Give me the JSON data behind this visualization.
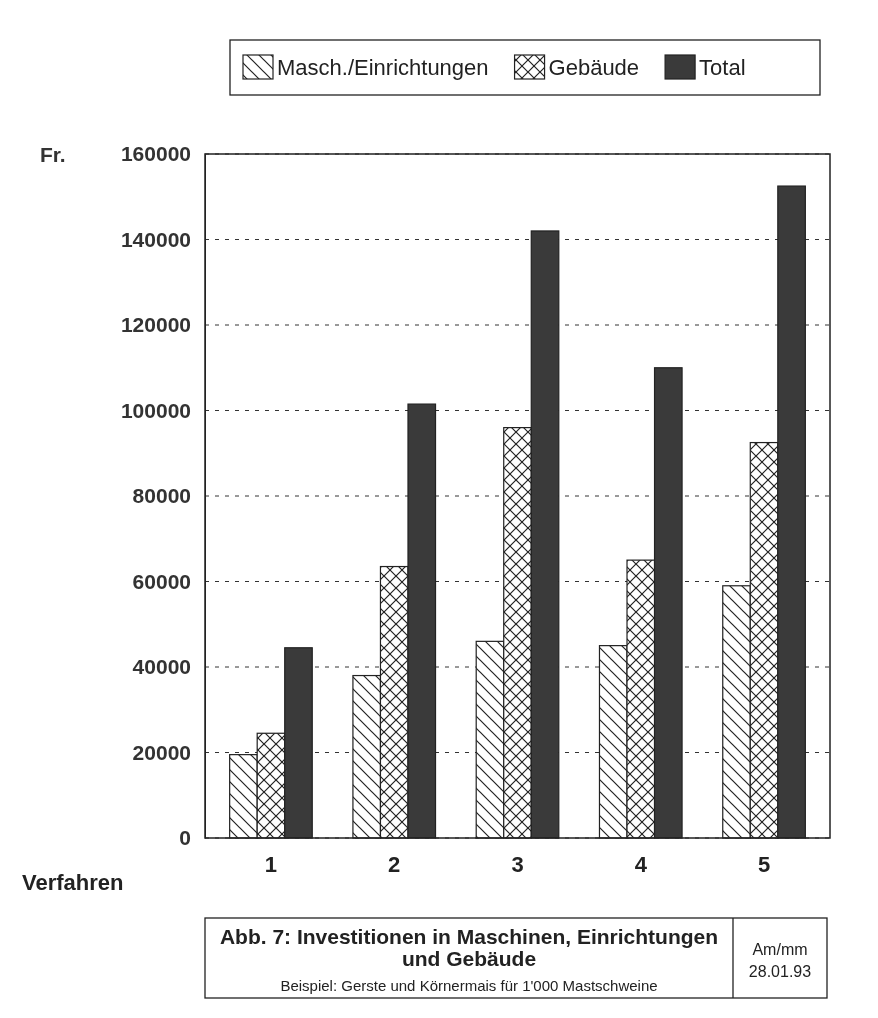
{
  "chart_data": {
    "type": "bar",
    "title": "Abb. 7: Investitionen in Maschinen, Einrichtungen und Gebäude",
    "subtitle": "Beispiel: Gerste und Körnermais für 1'000 Mastschweine",
    "ylabel": "Fr.",
    "xlabel": "Verfahren",
    "categories": [
      "1",
      "2",
      "3",
      "4",
      "5"
    ],
    "series": [
      {
        "name": "Masch./Einrichtungen",
        "color": "#222222",
        "values": [
          19500,
          38000,
          46000,
          45000,
          59000
        ]
      },
      {
        "name": "Gebäude",
        "color": "#222222",
        "values": [
          24500,
          63500,
          96000,
          65000,
          92500
        ]
      },
      {
        "name": "Total",
        "color": "#3a3a3a",
        "values": [
          44500,
          101500,
          142000,
          110000,
          152500
        ]
      }
    ],
    "ylim": [
      0,
      160000
    ],
    "yticks": [
      0,
      20000,
      40000,
      60000,
      80000,
      100000,
      120000,
      140000,
      160000
    ],
    "grid": "y",
    "legend": "top",
    "annotations": [
      "Am/mm",
      "28.01.93"
    ]
  }
}
